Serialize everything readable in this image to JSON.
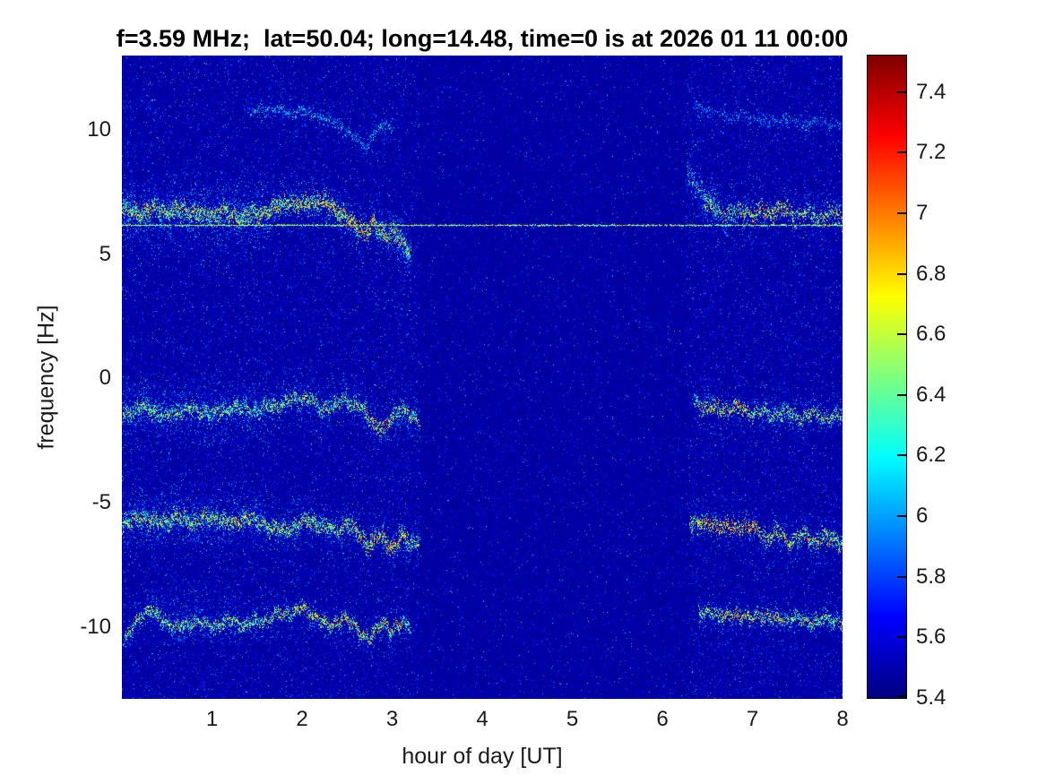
{
  "title": "f=3.59 MHz;  lat=50.04; long=14.48, time=0 is at 2026 01 11 00:00",
  "axes": {
    "xlabel": "hour of day [UT]",
    "ylabel": "frequency [Hz]",
    "xticks": [
      1,
      2,
      3,
      4,
      5,
      6,
      7,
      8
    ],
    "yticks": [
      10,
      5,
      0,
      -5,
      -10
    ],
    "xlim": [
      0,
      8
    ],
    "ylim": [
      -12.9,
      13.0
    ]
  },
  "colorbar": {
    "ticks": [
      5.4,
      5.6,
      5.8,
      6,
      6.2,
      6.4,
      6.6,
      6.8,
      7,
      7.2,
      7.4
    ],
    "vmin": 5.4,
    "vmax": 7.52
  },
  "chart_data": {
    "type": "heatmap",
    "title": "f=3.59 MHz;  lat=50.04; long=14.48, time=0 is at 2026 01 11 00:00",
    "xlabel": "hour of day [UT]",
    "ylabel": "frequency [Hz]",
    "xlim": [
      0,
      8
    ],
    "ylim": [
      -12.9,
      13.0
    ],
    "colormap": "jet",
    "color_scale": [
      5.4,
      7.52
    ],
    "background_value": 5.45,
    "grid": false,
    "active_intervals": [
      [
        0,
        3.3
      ],
      [
        6.25,
        8
      ]
    ],
    "carrier_line": {
      "freq": 6.2,
      "x0": 0,
      "x1": 8,
      "value_min": 6.45,
      "value_max": 7.3
    },
    "traces": [
      {
        "name": "doppler-main-left-band",
        "anchors": [
          [
            0,
            6.8
          ],
          [
            0.2,
            6.6
          ],
          [
            0.35,
            6.9
          ],
          [
            0.5,
            6.7
          ],
          [
            0.7,
            6.8
          ],
          [
            0.9,
            6.6
          ],
          [
            1.1,
            6.7
          ],
          [
            1.3,
            6.5
          ],
          [
            1.5,
            6.6
          ],
          [
            1.7,
            6.9
          ],
          [
            1.85,
            7.1
          ],
          [
            2.0,
            6.9
          ],
          [
            2.1,
            7.15
          ],
          [
            2.25,
            7.1
          ],
          [
            2.4,
            6.8
          ],
          [
            2.5,
            6.4
          ],
          [
            2.6,
            6.1
          ],
          [
            2.7,
            5.9
          ],
          [
            2.8,
            6.2
          ],
          [
            2.9,
            5.8
          ],
          [
            3.0,
            5.9
          ],
          [
            3.1,
            5.5
          ],
          [
            3.2,
            5.1
          ]
        ],
        "halo_sigma": 0.5,
        "halo_n": 3.5,
        "halo_vmax": 6.45,
        "core_sigma": 0.18,
        "core_n": 3,
        "core_vmin": 6.2,
        "core_vmax": 7.15,
        "hot": [
          [
            2.45,
            2.8,
            0.5
          ],
          [
            1.8,
            2.3,
            0.15
          ]
        ]
      },
      {
        "name": "doppler-main-left-cloud",
        "anchors": [
          [
            0,
            6.6
          ],
          [
            0.4,
            6.7
          ],
          [
            0.8,
            6.6
          ],
          [
            1.2,
            6.6
          ],
          [
            1.6,
            6.7
          ]
        ],
        "halo_sigma": 0.95,
        "halo_n": 3.5,
        "halo_vmax": 6.35,
        "core_sigma": 0.3,
        "core_n": 0,
        "core_vmin": 0,
        "core_vmax": 0
      },
      {
        "name": "doppler-main-left-tail",
        "anchors": [
          [
            3.02,
            6.0
          ],
          [
            3.1,
            5.4
          ],
          [
            3.2,
            4.7
          ]
        ],
        "halo_sigma": 0.45,
        "halo_n": 2,
        "halo_vmax": 6.35,
        "core_sigma": 0.2,
        "core_n": 1,
        "core_vmin": 6.0,
        "core_vmax": 6.5,
        "wiggle": 0.5
      },
      {
        "name": "doppler-main-right-onset",
        "anchors": [
          [
            6.27,
            8.4
          ],
          [
            6.35,
            7.9
          ],
          [
            6.45,
            7.4
          ],
          [
            6.6,
            7.0
          ]
        ],
        "halo_sigma": 0.5,
        "halo_n": 3,
        "halo_vmax": 6.4,
        "core_sigma": 0.25,
        "core_n": 1.2,
        "core_vmin": 6.0,
        "core_vmax": 6.8
      },
      {
        "name": "doppler-main-right",
        "anchors": [
          [
            6.45,
            7.1
          ],
          [
            6.6,
            6.8
          ],
          [
            6.75,
            6.6
          ],
          [
            6.9,
            6.8
          ],
          [
            7.0,
            6.5
          ],
          [
            7.1,
            6.8
          ],
          [
            7.2,
            6.6
          ],
          [
            7.35,
            6.9
          ],
          [
            7.5,
            6.5
          ],
          [
            7.6,
            6.7
          ],
          [
            7.75,
            6.5
          ],
          [
            7.9,
            6.7
          ],
          [
            8,
            6.5
          ]
        ],
        "halo_sigma": 0.45,
        "halo_n": 2.2,
        "halo_vmax": 6.4,
        "core_sigma": 0.18,
        "core_n": 2,
        "core_vmin": 6.2,
        "core_vmax": 7.1,
        "hot": [
          [
            6.85,
            7.45,
            0.4
          ]
        ]
      },
      {
        "name": "doppler-upper-left-faint",
        "anchors": [
          [
            1.4,
            10.7
          ],
          [
            1.6,
            10.9
          ],
          [
            1.8,
            10.8
          ],
          [
            2.0,
            10.75
          ],
          [
            2.15,
            10.6
          ],
          [
            2.3,
            10.4
          ],
          [
            2.45,
            10.1
          ],
          [
            2.6,
            9.6
          ],
          [
            2.7,
            9.4
          ],
          [
            2.8,
            9.9
          ],
          [
            2.9,
            10.3
          ],
          [
            3.0,
            10.1
          ]
        ],
        "halo_sigma": 0.3,
        "halo_n": 1.1,
        "halo_vmax": 6.3,
        "core_sigma": 0.12,
        "core_n": 0.8,
        "core_vmin": 5.95,
        "core_vmax": 6.5,
        "wiggle": 0.6
      },
      {
        "name": "doppler-upper-right-faint",
        "anchors": [
          [
            6.35,
            11.0
          ],
          [
            6.55,
            10.7
          ],
          [
            6.75,
            10.5
          ],
          [
            6.95,
            10.6
          ],
          [
            7.15,
            10.3
          ],
          [
            7.35,
            10.5
          ],
          [
            7.55,
            10.2
          ],
          [
            7.75,
            10.4
          ],
          [
            7.9,
            10.2
          ],
          [
            8,
            10.3
          ]
        ],
        "halo_sigma": 0.25,
        "halo_n": 0.8,
        "halo_vmax": 6.25,
        "core_sigma": 0.1,
        "core_n": 0.55,
        "core_vmin": 5.9,
        "core_vmax": 6.4,
        "wiggle": 0.6
      },
      {
        "name": "doppler-minus1-left",
        "anchors": [
          [
            0,
            -1.4
          ],
          [
            0.25,
            -1.1
          ],
          [
            0.5,
            -1.5
          ],
          [
            0.75,
            -1.2
          ],
          [
            1.0,
            -1.45
          ],
          [
            1.25,
            -1.15
          ],
          [
            1.5,
            -1.3
          ],
          [
            1.7,
            -1.05
          ],
          [
            1.9,
            -0.85
          ],
          [
            2.05,
            -0.75
          ],
          [
            2.2,
            -1.25
          ],
          [
            2.35,
            -1.05
          ],
          [
            2.5,
            -0.85
          ],
          [
            2.65,
            -1.2
          ],
          [
            2.8,
            -1.8
          ],
          [
            2.9,
            -2.05
          ],
          [
            3.0,
            -1.5
          ],
          [
            3.1,
            -1.2
          ],
          [
            3.2,
            -1.5
          ],
          [
            3.3,
            -1.7
          ]
        ],
        "halo_sigma": 0.55,
        "halo_n": 2.6,
        "halo_vmax": 6.35,
        "core_sigma": 0.16,
        "core_n": 2.2,
        "core_vmin": 6.15,
        "core_vmax": 7.0,
        "hot": [
          [
            2.7,
            3.0,
            0.45
          ],
          [
            1.9,
            2.15,
            0.12
          ]
        ]
      },
      {
        "name": "doppler-minus1-left-cloud",
        "anchors": [
          [
            0,
            -1.3
          ],
          [
            0.5,
            -1.4
          ],
          [
            1.0,
            -1.3
          ],
          [
            1.5,
            -1.3
          ]
        ],
        "halo_sigma": 0.85,
        "halo_n": 2.6,
        "halo_vmax": 6.25,
        "core_sigma": 0.3,
        "core_n": 0,
        "core_vmin": 0,
        "core_vmax": 0
      },
      {
        "name": "doppler-minus1-right",
        "anchors": [
          [
            6.35,
            -0.95
          ],
          [
            6.5,
            -1.15
          ],
          [
            6.65,
            -1.25
          ],
          [
            6.8,
            -1.15
          ],
          [
            6.95,
            -1.35
          ],
          [
            7.1,
            -1.3
          ],
          [
            7.2,
            -1.55
          ],
          [
            7.35,
            -1.35
          ],
          [
            7.5,
            -1.6
          ],
          [
            7.65,
            -1.35
          ],
          [
            7.8,
            -1.55
          ],
          [
            7.95,
            -1.45
          ],
          [
            8,
            -1.5
          ]
        ],
        "halo_sigma": 0.4,
        "halo_n": 1.8,
        "halo_vmax": 6.35,
        "core_sigma": 0.15,
        "core_n": 2,
        "core_vmin": 6.2,
        "core_vmax": 7.05,
        "hot": [
          [
            6.4,
            7.0,
            0.4
          ]
        ]
      },
      {
        "name": "doppler-minus1-right-plume",
        "anchors": [
          [
            6.44,
            -0.25
          ],
          [
            6.5,
            -0.6
          ],
          [
            6.56,
            -1.0
          ]
        ],
        "halo_sigma": 0.3,
        "halo_n": 1.5,
        "halo_vmax": 6.3,
        "core_sigma": 0.2,
        "core_n": 0,
        "core_vmin": 0,
        "core_vmax": 0,
        "wiggle": 0.3
      },
      {
        "name": "doppler-minus6-left",
        "anchors": [
          [
            0,
            -5.9
          ],
          [
            0.2,
            -5.6
          ],
          [
            0.4,
            -5.85
          ],
          [
            0.6,
            -5.55
          ],
          [
            0.8,
            -5.75
          ],
          [
            1.0,
            -5.6
          ],
          [
            1.2,
            -5.8
          ],
          [
            1.4,
            -5.6
          ],
          [
            1.6,
            -5.9
          ],
          [
            1.8,
            -6.15
          ],
          [
            1.95,
            -5.85
          ],
          [
            2.1,
            -5.7
          ],
          [
            2.25,
            -6.0
          ],
          [
            2.4,
            -6.05
          ],
          [
            2.5,
            -5.85
          ],
          [
            2.6,
            -6.15
          ],
          [
            2.75,
            -6.7
          ],
          [
            2.85,
            -6.3
          ],
          [
            3.0,
            -6.85
          ],
          [
            3.1,
            -6.35
          ],
          [
            3.2,
            -6.6
          ],
          [
            3.3,
            -6.5
          ]
        ],
        "halo_sigma": 0.5,
        "halo_n": 2.6,
        "halo_vmax": 6.4,
        "core_sigma": 0.17,
        "core_n": 2.4,
        "core_vmin": 6.2,
        "core_vmax": 7.05,
        "hot": [
          [
            2.6,
            3.15,
            0.45
          ],
          [
            0.9,
            1.4,
            0.1
          ]
        ]
      },
      {
        "name": "doppler-minus6-left-cloud",
        "anchors": [
          [
            0,
            -5.6
          ],
          [
            0.5,
            -5.5
          ],
          [
            1.0,
            -5.5
          ],
          [
            1.6,
            -5.7
          ]
        ],
        "halo_sigma": 0.8,
        "halo_n": 2.6,
        "halo_vmax": 6.3,
        "core_sigma": 0.3,
        "core_n": 0,
        "core_vmin": 0,
        "core_vmax": 0
      },
      {
        "name": "doppler-minus6-right",
        "anchors": [
          [
            6.3,
            -5.65
          ],
          [
            6.45,
            -5.9
          ],
          [
            6.6,
            -5.85
          ],
          [
            6.75,
            -6.0
          ],
          [
            6.9,
            -5.9
          ],
          [
            7.05,
            -6.05
          ],
          [
            7.15,
            -6.45
          ],
          [
            7.3,
            -6.2
          ],
          [
            7.4,
            -6.55
          ],
          [
            7.55,
            -6.3
          ],
          [
            7.65,
            -6.55
          ],
          [
            7.8,
            -6.35
          ],
          [
            7.95,
            -6.6
          ],
          [
            8,
            -6.5
          ]
        ],
        "halo_sigma": 0.4,
        "halo_n": 2,
        "halo_vmax": 6.4,
        "core_sigma": 0.16,
        "core_n": 2.2,
        "core_vmin": 6.3,
        "core_vmax": 7.15,
        "hot": [
          [
            6.4,
            7.1,
            0.45
          ]
        ]
      },
      {
        "name": "doppler-minus10-left",
        "anchors": [
          [
            0.02,
            -10.6
          ],
          [
            0.15,
            -9.8
          ],
          [
            0.3,
            -9.25
          ],
          [
            0.45,
            -9.7
          ],
          [
            0.6,
            -10.05
          ],
          [
            0.8,
            -9.75
          ],
          [
            1.0,
            -10.0
          ],
          [
            1.2,
            -9.75
          ],
          [
            1.4,
            -9.9
          ],
          [
            1.6,
            -9.65
          ],
          [
            1.8,
            -9.45
          ],
          [
            2.0,
            -9.3
          ],
          [
            2.15,
            -9.55
          ],
          [
            2.3,
            -10.0
          ],
          [
            2.45,
            -9.6
          ],
          [
            2.6,
            -10.1
          ],
          [
            2.75,
            -10.45
          ],
          [
            2.9,
            -9.8
          ],
          [
            3.0,
            -10.15
          ],
          [
            3.1,
            -9.9
          ],
          [
            3.2,
            -10.0
          ]
        ],
        "halo_sigma": 0.38,
        "halo_n": 2,
        "halo_vmax": 6.35,
        "core_sigma": 0.13,
        "core_n": 2,
        "core_vmin": 6.2,
        "core_vmax": 7.0,
        "hot": [
          [
            1.9,
            3.1,
            0.3
          ]
        ]
      },
      {
        "name": "doppler-minus10-left-cloud",
        "anchors": [
          [
            0.3,
            -9.4
          ],
          [
            0.8,
            -9.3
          ],
          [
            1.3,
            -9.5
          ]
        ],
        "halo_sigma": 0.6,
        "halo_n": 1.3,
        "halo_vmax": 6.2,
        "core_sigma": 0.3,
        "core_n": 0,
        "core_vmin": 0,
        "core_vmax": 0
      },
      {
        "name": "doppler-minus10-right",
        "anchors": [
          [
            6.4,
            -9.55
          ],
          [
            6.55,
            -9.35
          ],
          [
            6.7,
            -9.6
          ],
          [
            6.85,
            -9.45
          ],
          [
            7.0,
            -9.7
          ],
          [
            7.15,
            -9.5
          ],
          [
            7.3,
            -9.75
          ],
          [
            7.45,
            -9.55
          ],
          [
            7.6,
            -9.85
          ],
          [
            7.75,
            -9.65
          ],
          [
            7.9,
            -9.8
          ],
          [
            8,
            -9.7
          ]
        ],
        "halo_sigma": 0.33,
        "halo_n": 1.6,
        "halo_vmax": 6.35,
        "core_sigma": 0.13,
        "core_n": 1.8,
        "core_vmin": 6.2,
        "core_vmax": 7.0,
        "hot": [
          [
            6.6,
            7.35,
            0.35
          ]
        ]
      }
    ]
  }
}
